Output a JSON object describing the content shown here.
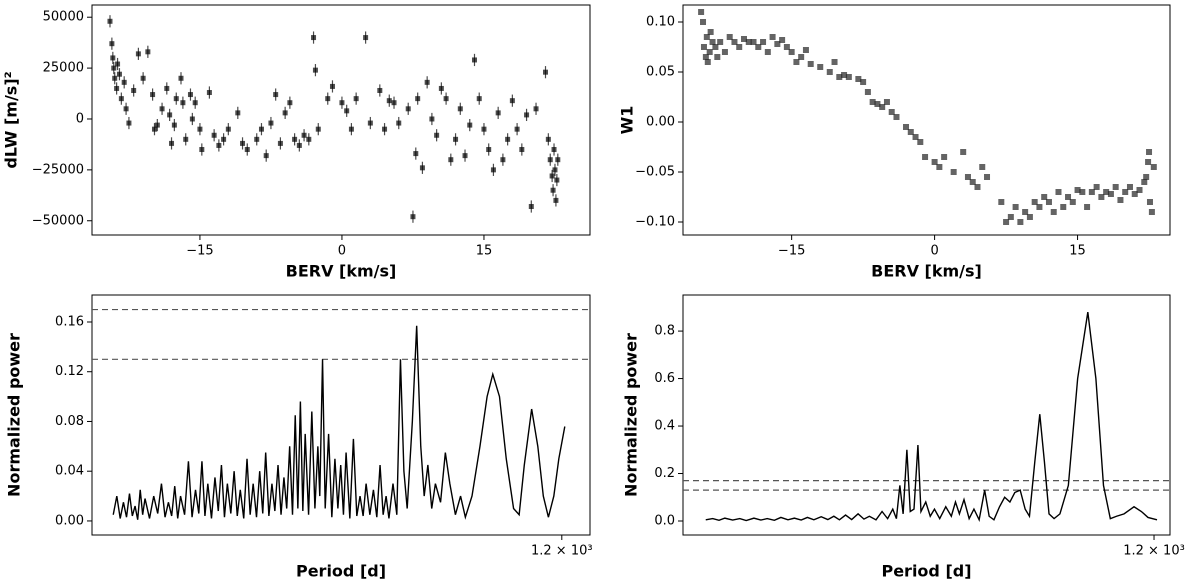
{
  "chart_data": [
    {
      "type": "scatter",
      "xlabel": "BERV [km/s]",
      "ylabel": "dLW [m/s]²",
      "color": "#000000",
      "alpha": 0.7,
      "yerr": 3000,
      "xlim": [
        -26.4,
        26.2
      ],
      "ylim": [
        -57000,
        56000
      ],
      "xticks": [
        {
          "value": -15,
          "label": "−15"
        },
        0,
        15
      ],
      "yticks": [
        50000,
        25000,
        0,
        {
          "value": -25000,
          "label": "−25000"
        },
        {
          "value": -50000,
          "label": "−50000"
        }
      ],
      "x": [
        -24.5,
        -24.3,
        -24.2,
        -24.1,
        -24,
        -23.8,
        -23.7,
        -23.5,
        -23.3,
        -23,
        -22.8,
        -22.5,
        -22,
        -21.5,
        -21,
        -20.5,
        -20,
        -19.8,
        -19.5,
        -19,
        -18.5,
        -18.2,
        -18,
        -17.7,
        -17.5,
        -17,
        -16.8,
        -16.5,
        -16,
        -15.8,
        -15.5,
        -15,
        -14.8,
        -14,
        -13.5,
        -13,
        -12.5,
        -12,
        -11,
        -10.5,
        -10,
        -9,
        -8.5,
        -8,
        -7.5,
        -7,
        -6.5,
        -6,
        -5.5,
        -5,
        -4.5,
        -4,
        -3.5,
        -3,
        -2.8,
        -2.5,
        -1.5,
        -1,
        0,
        0.5,
        1,
        1.5,
        2.5,
        3,
        4,
        4.5,
        5,
        5.5,
        6,
        7,
        7.5,
        7.8,
        8,
        8.5,
        9,
        9.5,
        10,
        10.5,
        11,
        11.5,
        12,
        12.5,
        13,
        13.5,
        14,
        14.5,
        15,
        15.5,
        16,
        16.5,
        17,
        17.5,
        18,
        18.5,
        19,
        19.5,
        20,
        20.5,
        21.5,
        21.8,
        22,
        22.2,
        22.3,
        22.4,
        22.5,
        22.6,
        22.7,
        22.8
      ],
      "values": [
        48000,
        37000,
        30000,
        25000,
        20000,
        15000,
        27000,
        22000,
        10000,
        18000,
        5000,
        -2000,
        14000,
        32000,
        20000,
        33000,
        12000,
        -5000,
        -3000,
        5000,
        15000,
        2000,
        -12000,
        -3000,
        10000,
        20000,
        8000,
        -10000,
        12000,
        0,
        8000,
        -5000,
        -15000,
        13000,
        -8000,
        -13000,
        -10000,
        -5000,
        3000,
        -12000,
        -15000,
        -10000,
        -5000,
        -18000,
        -2000,
        12000,
        -12000,
        3000,
        8000,
        -10000,
        -13000,
        -8000,
        -10000,
        40000,
        24000,
        -5000,
        10000,
        16000,
        8000,
        4000,
        -5000,
        10000,
        40000,
        -2000,
        14000,
        -5000,
        9000,
        8000,
        -2000,
        5000,
        -48000,
        -17000,
        10000,
        -24000,
        18000,
        0,
        -8000,
        15000,
        10000,
        -20000,
        -10000,
        5000,
        -18000,
        -3000,
        29000,
        10000,
        -5000,
        -15000,
        -25000,
        3000,
        -20000,
        -10000,
        9000,
        -5000,
        -15000,
        2000,
        -43000,
        5000,
        23000,
        -10000,
        -20000,
        -28000,
        -35000,
        -15000,
        -25000,
        -40000,
        -30000,
        -20000
      ]
    },
    {
      "type": "scatter",
      "xlabel": "BERV [km/s]",
      "ylabel": "W1",
      "color": "#222222",
      "alpha": 0.7,
      "xlim": [
        -26.4,
        24.7
      ],
      "ylim": [
        -0.113,
        0.117
      ],
      "xticks": [
        {
          "value": -15,
          "label": "−15"
        },
        0,
        15
      ],
      "yticks": [
        {
          "value": 0.1,
          "label": "0.10"
        },
        0.05,
        {
          "value": 0,
          "label": "0.00"
        },
        {
          "value": -0.05,
          "label": "−0.05"
        },
        {
          "value": -0.1,
          "label": "−0.10"
        }
      ],
      "x": [
        -24.5,
        -24.3,
        -24.2,
        -24,
        -23.9,
        -23.8,
        -23.6,
        -23.5,
        -23.3,
        -23,
        -22.8,
        -22.5,
        -22,
        -21.5,
        -21,
        -20.5,
        -20,
        -19.5,
        -19,
        -18.5,
        -18,
        -17.5,
        -17,
        -16.5,
        -16,
        -15.5,
        -15,
        -14.5,
        -14,
        -13.5,
        -13,
        -12,
        -11,
        -10.5,
        -10,
        -9.5,
        -9,
        -8,
        -7.5,
        -7,
        -6.5,
        -6,
        -5.5,
        -5,
        -4.5,
        -4,
        -3,
        -2.5,
        -2,
        -1.5,
        -1,
        0,
        0.5,
        1,
        2,
        3,
        3.5,
        4,
        4.5,
        5,
        5.5,
        7,
        7.5,
        8,
        8.5,
        9,
        9.5,
        10,
        10.5,
        11,
        11.5,
        12,
        12.5,
        13,
        13.5,
        14,
        14.5,
        15,
        15.5,
        16,
        16.5,
        17,
        17.5,
        18,
        18.5,
        19,
        19.5,
        20,
        20.5,
        21,
        21.5,
        22,
        22.2,
        22.4,
        22.5,
        22.6,
        22.8,
        23
      ],
      "values": [
        0.11,
        0.1,
        0.075,
        0.065,
        0.085,
        0.06,
        0.07,
        0.09,
        0.08,
        0.075,
        0.065,
        0.08,
        0.07,
        0.085,
        0.08,
        0.075,
        0.083,
        0.08,
        0.08,
        0.075,
        0.08,
        0.07,
        0.085,
        0.078,
        0.082,
        0.075,
        0.07,
        0.06,
        0.065,
        0.072,
        0.058,
        0.055,
        0.05,
        0.06,
        0.045,
        0.047,
        0.045,
        0.043,
        0.04,
        0.03,
        0.02,
        0.018,
        0.015,
        0.02,
        0.01,
        0.005,
        -0.005,
        -0.01,
        -0.015,
        -0.02,
        -0.035,
        -0.04,
        -0.045,
        -0.035,
        -0.05,
        -0.03,
        -0.055,
        -0.06,
        -0.065,
        -0.045,
        -0.055,
        -0.08,
        -0.1,
        -0.095,
        -0.085,
        -0.1,
        -0.09,
        -0.095,
        -0.08,
        -0.085,
        -0.075,
        -0.08,
        -0.09,
        -0.07,
        -0.085,
        -0.075,
        -0.08,
        -0.068,
        -0.07,
        -0.085,
        -0.07,
        -0.065,
        -0.075,
        -0.07,
        -0.072,
        -0.065,
        -0.078,
        -0.07,
        -0.065,
        -0.072,
        -0.068,
        -0.06,
        -0.055,
        -0.04,
        -0.03,
        -0.08,
        -0.09,
        -0.045
      ]
    },
    {
      "type": "line",
      "xlabel": "Period [d]",
      "ylabel": "Normalized power",
      "color": "#000000",
      "xscale": "log",
      "xlim": [
        1.4,
        1800
      ],
      "ylim": [
        -0.0113,
        0.1817
      ],
      "xticks": [
        {
          "value": 1200,
          "label": "1.2 × 10³"
        }
      ],
      "yticks": [
        {
          "value": 0,
          "label": "0.00"
        },
        0.04,
        0.08,
        0.12,
        0.16
      ],
      "hlines": [
        0.17,
        0.13
      ],
      "hline_color": "#555555",
      "x": [
        1.9,
        2.0,
        2.1,
        2.2,
        2.3,
        2.4,
        2.5,
        2.6,
        2.7,
        2.8,
        2.9,
        3.0,
        3.2,
        3.4,
        3.6,
        3.8,
        4.0,
        4.2,
        4.4,
        4.6,
        4.8,
        5.0,
        5.3,
        5.6,
        5.9,
        6.2,
        6.5,
        6.8,
        7.1,
        7.4,
        7.8,
        8.2,
        8.6,
        9.0,
        9.4,
        9.8,
        10.3,
        10.8,
        11.3,
        11.8,
        12.4,
        13,
        13.6,
        14.2,
        14.9,
        15.6,
        16.3,
        17,
        17.8,
        18.6,
        19.4,
        20.3,
        21.2,
        22.1,
        23,
        24,
        25,
        26,
        27,
        28,
        29,
        30,
        31.5,
        33,
        34.5,
        36,
        37,
        38.5,
        40,
        42,
        44,
        46,
        48,
        50,
        52,
        54,
        57,
        60,
        63,
        66,
        69,
        72,
        76,
        80,
        84,
        88,
        92,
        96,
        100,
        106,
        112,
        118,
        124,
        130,
        140,
        149,
        158,
        166,
        175,
        185,
        195,
        210,
        225,
        240,
        260,
        280,
        300,
        330,
        370,
        410,
        445,
        490,
        540,
        600,
        650,
        700,
        778,
        850,
        920,
        990,
        1070,
        1150,
        1253
      ],
      "values": [
        0.005,
        0.02,
        0.002,
        0.015,
        0.003,
        0.022,
        0.004,
        0.012,
        0.001,
        0.025,
        0.005,
        0.018,
        0.002,
        0.02,
        0.006,
        0.03,
        0.003,
        0.015,
        0.004,
        0.028,
        0.002,
        0.02,
        0.005,
        0.048,
        0.003,
        0.025,
        0.006,
        0.048,
        0.004,
        0.03,
        0.002,
        0.035,
        0.008,
        0.045,
        0.003,
        0.03,
        0.006,
        0.04,
        0.004,
        0.025,
        0.002,
        0.05,
        0.005,
        0.03,
        0.003,
        0.04,
        0.006,
        0.055,
        0.004,
        0.03,
        0.008,
        0.045,
        0.005,
        0.035,
        0.01,
        0.06,
        0.005,
        0.085,
        0.01,
        0.096,
        0.008,
        0.07,
        0.005,
        0.088,
        0.01,
        0.06,
        0.02,
        0.13,
        0.01,
        0.07,
        0.003,
        0.05,
        0.01,
        0.045,
        0.005,
        0.055,
        0.002,
        0.066,
        0.004,
        0.02,
        0.004,
        0.03,
        0.005,
        0.025,
        0.003,
        0.045,
        0.005,
        0.02,
        0.002,
        0.03,
        0.005,
        0.13,
        0.04,
        0.01,
        0.08,
        0.157,
        0.06,
        0.02,
        0.045,
        0.01,
        0.03,
        0.015,
        0.055,
        0.03,
        0.005,
        0.02,
        0.003,
        0.02,
        0.06,
        0.1,
        0.118,
        0.1,
        0.05,
        0.01,
        0.005,
        0.045,
        0.09,
        0.06,
        0.02,
        0.003,
        0.02,
        0.05,
        0.076
      ]
    },
    {
      "type": "line",
      "xlabel": "Period [d]",
      "ylabel": "Normalized power",
      "color": "#000000",
      "xscale": "log",
      "xlim": [
        1.37,
        1510
      ],
      "ylim": [
        -0.059,
        0.952
      ],
      "xticks": [
        {
          "value": 1200,
          "label": "1.2 × 10³"
        }
      ],
      "yticks": [
        {
          "value": 0,
          "label": "0.0"
        },
        0.2,
        0.4,
        0.6,
        0.8
      ],
      "hlines": [
        0.17,
        0.13
      ],
      "hline_color": "#555555",
      "x": [
        1.9,
        2.1,
        2.3,
        2.5,
        2.8,
        3.1,
        3.4,
        3.8,
        4.2,
        4.6,
        5.1,
        5.6,
        6.2,
        6.8,
        7.5,
        8.2,
        9,
        10,
        11,
        12,
        13,
        14.2,
        15.5,
        17,
        18.5,
        20,
        22,
        24,
        26,
        28,
        29.5,
        31,
        32.5,
        34.3,
        36,
        38,
        40.2,
        42,
        45,
        48,
        51,
        55,
        60,
        65,
        69,
        73,
        78,
        84,
        90,
        97,
        105,
        112,
        120,
        130,
        140,
        151,
        162,
        175,
        188,
        200,
        216,
        232,
        248,
        265,
        285,
        310,
        350,
        400,
        463,
        520,
        580,
        640,
        700,
        780,
        900,
        1000,
        1100,
        1253
      ],
      "values": [
        0.005,
        0.01,
        0.003,
        0.012,
        0.004,
        0.01,
        0.002,
        0.012,
        0.004,
        0.01,
        0.003,
        0.015,
        0.005,
        0.012,
        0.004,
        0.015,
        0.005,
        0.018,
        0.006,
        0.02,
        0.005,
        0.025,
        0.006,
        0.03,
        0.008,
        0.02,
        0.005,
        0.04,
        0.01,
        0.05,
        0.01,
        0.15,
        0.03,
        0.3,
        0.04,
        0.05,
        0.32,
        0.04,
        0.08,
        0.02,
        0.05,
        0.01,
        0.06,
        0.02,
        0.08,
        0.03,
        0.09,
        0.01,
        0.05,
        0.005,
        0.13,
        0.02,
        0.005,
        0.06,
        0.1,
        0.08,
        0.12,
        0.13,
        0.05,
        0.02,
        0.25,
        0.45,
        0.25,
        0.03,
        0.01,
        0.03,
        0.15,
        0.6,
        0.88,
        0.6,
        0.15,
        0.01,
        0.02,
        0.03,
        0.06,
        0.04,
        0.015,
        0.005
      ]
    }
  ]
}
